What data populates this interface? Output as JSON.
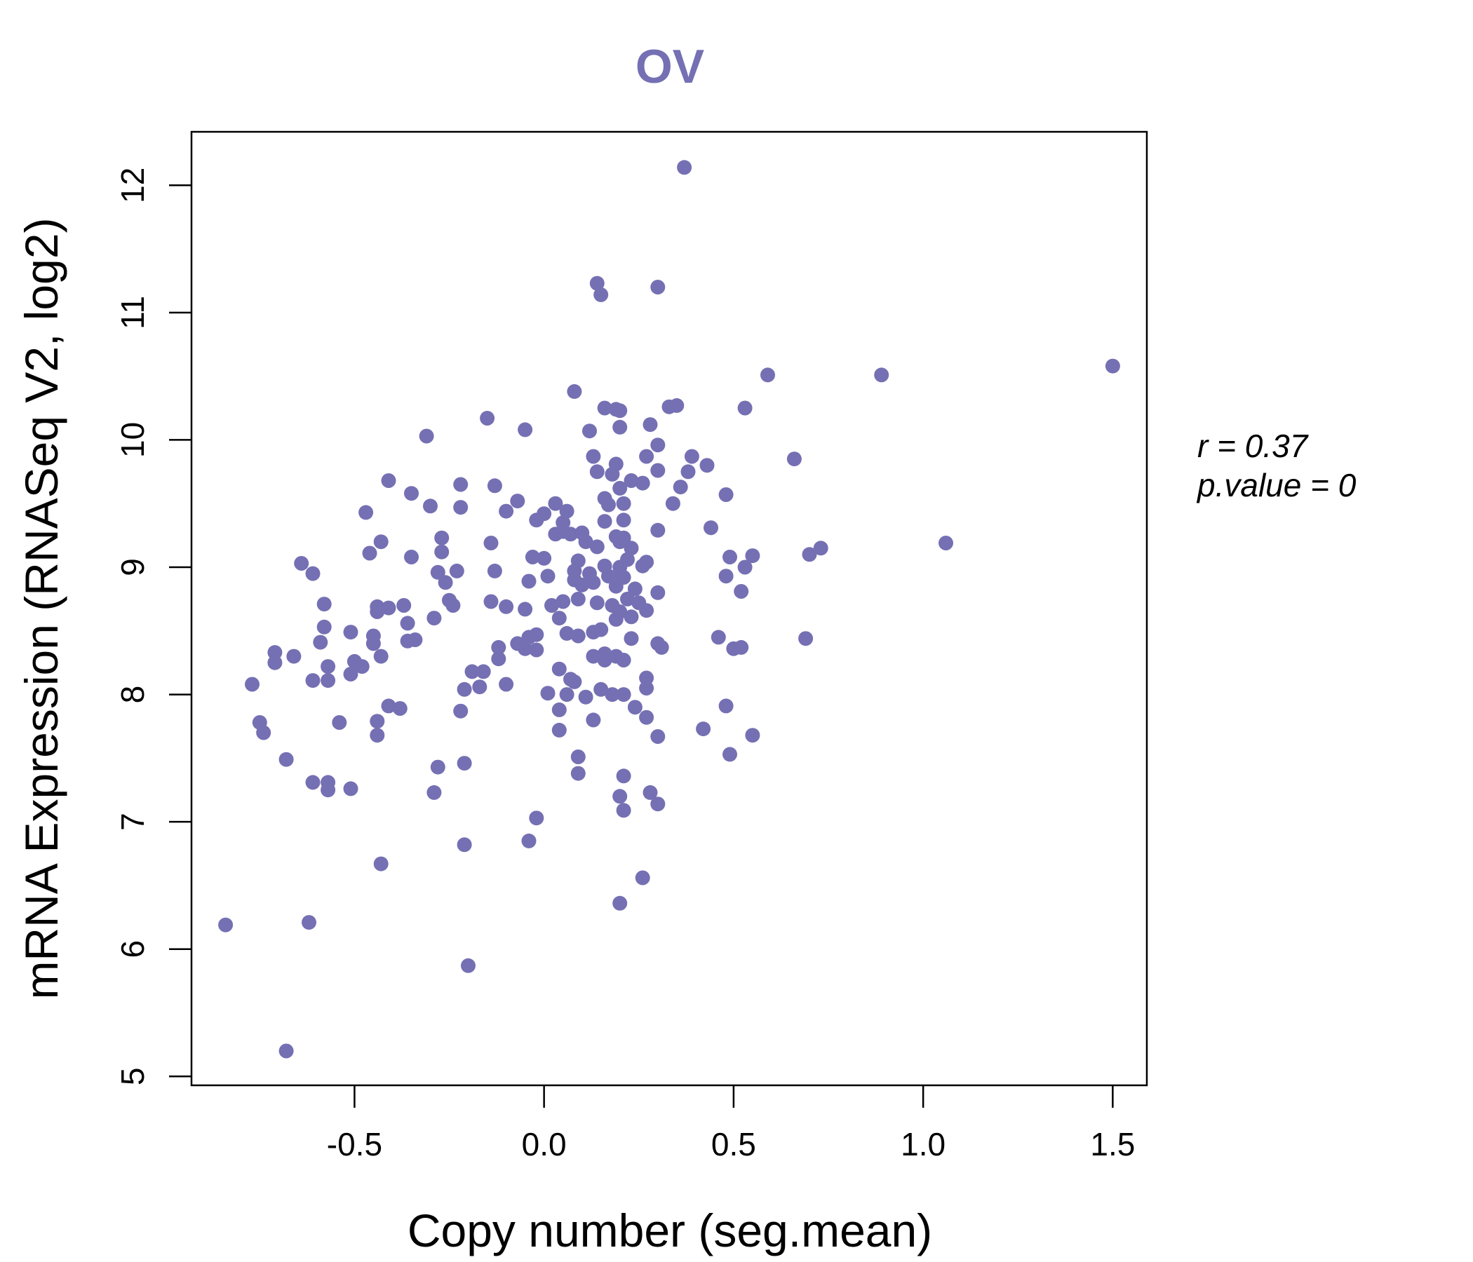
{
  "chart_data": {
    "type": "scatter",
    "title": "OV",
    "xlabel": "Copy number (seg.mean)",
    "ylabel": "mRNA Expression (RNASeq V2, log2)",
    "xlim": [
      -0.93,
      1.59
    ],
    "ylim": [
      4.93,
      12.42
    ],
    "x_ticks": [
      -0.5,
      0.0,
      0.5,
      1.0,
      1.5
    ],
    "x_tick_labels": [
      "-0.5",
      "0.0",
      "0.5",
      "1.0",
      "1.5"
    ],
    "y_ticks": [
      5,
      6,
      7,
      8,
      9,
      10,
      11,
      12
    ],
    "y_tick_labels": [
      "5",
      "6",
      "7",
      "8",
      "9",
      "10",
      "11",
      "12"
    ],
    "grid": false,
    "point_color": "#7570b3",
    "stats": {
      "r_label": "r = 0.37",
      "p_label": "p.value = 0"
    },
    "series": [
      {
        "name": "OV samples",
        "points": [
          [
            0.37,
            12.14
          ],
          [
            0.14,
            11.23
          ],
          [
            0.15,
            11.14
          ],
          [
            0.3,
            11.2
          ],
          [
            1.5,
            10.58
          ],
          [
            0.89,
            10.51
          ],
          [
            0.59,
            10.51
          ],
          [
            0.08,
            10.38
          ],
          [
            0.16,
            10.25
          ],
          [
            0.19,
            10.24
          ],
          [
            0.2,
            10.23
          ],
          [
            0.33,
            10.26
          ],
          [
            0.35,
            10.27
          ],
          [
            0.53,
            10.25
          ],
          [
            -0.15,
            10.17
          ],
          [
            -0.31,
            10.03
          ],
          [
            -0.05,
            10.08
          ],
          [
            0.2,
            10.1
          ],
          [
            0.28,
            10.12
          ],
          [
            0.12,
            10.07
          ],
          [
            0.3,
            9.96
          ],
          [
            0.13,
            9.87
          ],
          [
            0.27,
            9.87
          ],
          [
            0.39,
            9.87
          ],
          [
            0.66,
            9.85
          ],
          [
            0.43,
            9.8
          ],
          [
            0.19,
            9.81
          ],
          [
            0.3,
            9.76
          ],
          [
            0.38,
            9.75
          ],
          [
            0.14,
            9.75
          ],
          [
            0.18,
            9.73
          ],
          [
            0.23,
            9.68
          ],
          [
            0.26,
            9.66
          ],
          [
            0.36,
            9.63
          ],
          [
            0.2,
            9.62
          ],
          [
            0.48,
            9.57
          ],
          [
            -0.41,
            9.68
          ],
          [
            -0.35,
            9.58
          ],
          [
            -0.22,
            9.65
          ],
          [
            -0.13,
            9.64
          ],
          [
            -0.3,
            9.48
          ],
          [
            -0.22,
            9.47
          ],
          [
            -0.07,
            9.52
          ],
          [
            -0.1,
            9.44
          ],
          [
            -0.47,
            9.43
          ],
          [
            0.03,
            9.5
          ],
          [
            0.16,
            9.54
          ],
          [
            0.17,
            9.49
          ],
          [
            0.21,
            9.5
          ],
          [
            0.34,
            9.5
          ],
          [
            0.06,
            9.44
          ],
          [
            0.0,
            9.42
          ],
          [
            -0.02,
            9.37
          ],
          [
            0.05,
            9.35
          ],
          [
            0.16,
            9.36
          ],
          [
            0.21,
            9.37
          ],
          [
            0.3,
            9.29
          ],
          [
            0.44,
            9.31
          ],
          [
            0.05,
            9.28
          ],
          [
            0.07,
            9.26
          ],
          [
            0.1,
            9.27
          ],
          [
            0.19,
            9.24
          ],
          [
            0.21,
            9.23
          ],
          [
            0.03,
            9.26
          ],
          [
            0.11,
            9.2
          ],
          [
            0.2,
            9.2
          ],
          [
            0.23,
            9.15
          ],
          [
            0.14,
            9.16
          ],
          [
            0.73,
            9.15
          ],
          [
            0.7,
            9.1
          ],
          [
            1.06,
            9.19
          ],
          [
            0.55,
            9.09
          ],
          [
            0.49,
            9.08
          ],
          [
            -0.43,
            9.2
          ],
          [
            -0.46,
            9.11
          ],
          [
            -0.27,
            9.23
          ],
          [
            -0.14,
            9.19
          ],
          [
            -0.27,
            9.12
          ],
          [
            -0.35,
            9.08
          ],
          [
            -0.03,
            9.08
          ],
          [
            0.0,
            9.07
          ],
          [
            0.09,
            9.05
          ],
          [
            0.22,
            9.06
          ],
          [
            0.16,
            9.01
          ],
          [
            0.26,
            9.01
          ],
          [
            0.27,
            9.04
          ],
          [
            0.2,
            9.0
          ],
          [
            0.08,
            8.97
          ],
          [
            0.12,
            8.95
          ],
          [
            0.08,
            8.9
          ],
          [
            0.17,
            8.93
          ],
          [
            0.19,
            8.9
          ],
          [
            0.21,
            8.92
          ],
          [
            0.48,
            8.93
          ],
          [
            0.53,
            9.0
          ],
          [
            -0.64,
            9.03
          ],
          [
            -0.61,
            8.95
          ],
          [
            -0.28,
            8.96
          ],
          [
            -0.23,
            8.97
          ],
          [
            -0.13,
            8.97
          ],
          [
            -0.26,
            8.88
          ],
          [
            -0.04,
            8.89
          ],
          [
            0.01,
            8.93
          ],
          [
            0.1,
            8.86
          ],
          [
            0.13,
            8.88
          ],
          [
            0.19,
            8.85
          ],
          [
            0.24,
            8.83
          ],
          [
            0.3,
            8.8
          ],
          [
            0.52,
            8.81
          ],
          [
            -0.58,
            8.71
          ],
          [
            -0.44,
            8.69
          ],
          [
            -0.41,
            8.68
          ],
          [
            -0.37,
            8.7
          ],
          [
            -0.24,
            8.7
          ],
          [
            -0.14,
            8.73
          ],
          [
            -0.1,
            8.69
          ],
          [
            -0.05,
            8.67
          ],
          [
            0.02,
            8.7
          ],
          [
            0.05,
            8.73
          ],
          [
            0.09,
            8.75
          ],
          [
            0.14,
            8.72
          ],
          [
            0.18,
            8.7
          ],
          [
            0.22,
            8.75
          ],
          [
            0.25,
            8.72
          ],
          [
            0.27,
            8.66
          ],
          [
            0.2,
            8.65
          ],
          [
            0.23,
            8.61
          ],
          [
            0.04,
            8.6
          ],
          [
            0.19,
            8.59
          ],
          [
            -0.44,
            8.65
          ],
          [
            -0.36,
            8.56
          ],
          [
            -0.29,
            8.6
          ],
          [
            -0.25,
            8.74
          ],
          [
            -0.58,
            8.53
          ],
          [
            -0.51,
            8.49
          ],
          [
            -0.45,
            8.46
          ],
          [
            -0.04,
            8.45
          ],
          [
            -0.02,
            8.47
          ],
          [
            0.06,
            8.48
          ],
          [
            0.09,
            8.46
          ],
          [
            0.13,
            8.49
          ],
          [
            0.15,
            8.51
          ],
          [
            0.23,
            8.44
          ],
          [
            0.46,
            8.45
          ],
          [
            0.69,
            8.44
          ],
          [
            -0.59,
            8.41
          ],
          [
            -0.45,
            8.4
          ],
          [
            -0.36,
            8.42
          ],
          [
            -0.34,
            8.43
          ],
          [
            -0.07,
            8.4
          ],
          [
            -0.05,
            8.36
          ],
          [
            -0.02,
            8.35
          ],
          [
            0.3,
            8.4
          ],
          [
            0.31,
            8.37
          ],
          [
            0.5,
            8.36
          ],
          [
            0.52,
            8.37
          ],
          [
            -0.12,
            8.37
          ],
          [
            -0.66,
            8.3
          ],
          [
            -0.71,
            8.33
          ],
          [
            -0.71,
            8.25
          ],
          [
            -0.57,
            8.22
          ],
          [
            -0.5,
            8.26
          ],
          [
            -0.48,
            8.22
          ],
          [
            -0.43,
            8.3
          ],
          [
            -0.12,
            8.28
          ],
          [
            0.13,
            8.3
          ],
          [
            0.16,
            8.32
          ],
          [
            0.19,
            8.3
          ],
          [
            0.21,
            8.27
          ],
          [
            0.16,
            8.27
          ],
          [
            -0.61,
            8.11
          ],
          [
            -0.57,
            8.11
          ],
          [
            -0.51,
            8.16
          ],
          [
            -0.77,
            8.08
          ],
          [
            -0.19,
            8.18
          ],
          [
            -0.16,
            8.18
          ],
          [
            -0.21,
            8.04
          ],
          [
            -0.17,
            8.06
          ],
          [
            -0.1,
            8.08
          ],
          [
            0.04,
            8.2
          ],
          [
            0.07,
            8.12
          ],
          [
            0.08,
            8.1
          ],
          [
            0.27,
            8.13
          ],
          [
            0.01,
            8.01
          ],
          [
            0.06,
            8.0
          ],
          [
            0.11,
            7.98
          ],
          [
            0.15,
            8.04
          ],
          [
            0.18,
            8.0
          ],
          [
            0.21,
            8.0
          ],
          [
            0.27,
            8.05
          ],
          [
            -0.41,
            7.91
          ],
          [
            -0.38,
            7.89
          ],
          [
            -0.22,
            7.87
          ],
          [
            0.04,
            7.88
          ],
          [
            0.24,
            7.9
          ],
          [
            0.48,
            7.91
          ],
          [
            -0.75,
            7.78
          ],
          [
            -0.74,
            7.7
          ],
          [
            -0.54,
            7.78
          ],
          [
            -0.44,
            7.79
          ],
          [
            -0.44,
            7.68
          ],
          [
            0.04,
            7.72
          ],
          [
            0.13,
            7.8
          ],
          [
            0.27,
            7.82
          ],
          [
            0.3,
            7.67
          ],
          [
            0.42,
            7.73
          ],
          [
            0.55,
            7.68
          ],
          [
            -0.68,
            7.49
          ],
          [
            -0.28,
            7.43
          ],
          [
            -0.21,
            7.46
          ],
          [
            0.09,
            7.51
          ],
          [
            0.49,
            7.53
          ],
          [
            0.21,
            7.36
          ],
          [
            -0.61,
            7.31
          ],
          [
            -0.57,
            7.31
          ],
          [
            -0.57,
            7.25
          ],
          [
            -0.51,
            7.26
          ],
          [
            0.09,
            7.38
          ],
          [
            -0.29,
            7.23
          ],
          [
            0.2,
            7.2
          ],
          [
            0.28,
            7.23
          ],
          [
            0.3,
            7.14
          ],
          [
            0.21,
            7.09
          ],
          [
            -0.02,
            7.03
          ],
          [
            -0.04,
            6.85
          ],
          [
            -0.21,
            6.82
          ],
          [
            -0.43,
            6.67
          ],
          [
            0.26,
            6.56
          ],
          [
            0.2,
            6.36
          ],
          [
            -0.84,
            6.19
          ],
          [
            -0.62,
            6.21
          ],
          [
            -0.2,
            5.87
          ],
          [
            -0.68,
            5.2
          ]
        ]
      }
    ]
  }
}
